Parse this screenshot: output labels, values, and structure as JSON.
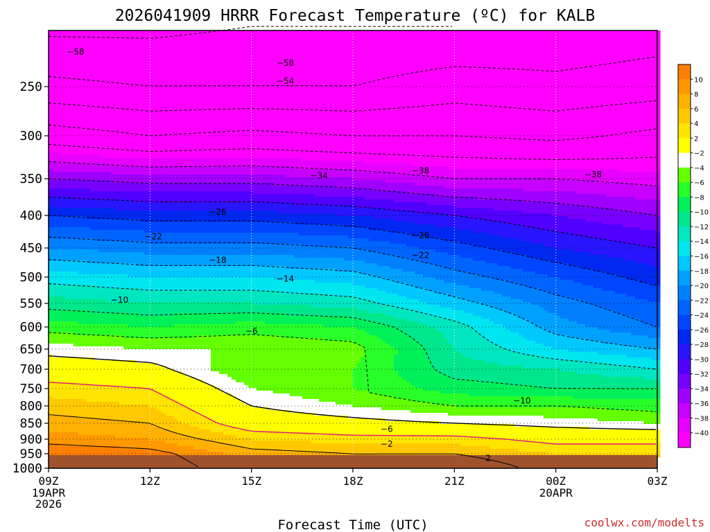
{
  "chart_data": {
    "type": "heatmap",
    "title": "2026041909 HRRR Forecast Temperature (ºC) for KALB",
    "xlabel": "Forecast Time (UTC)",
    "ylabel": "",
    "x_ticks": [
      {
        "hour": 9,
        "label": "09Z",
        "sub": [
          "19APR",
          "2026"
        ]
      },
      {
        "hour": 12,
        "label": "12Z",
        "sub": []
      },
      {
        "hour": 15,
        "label": "15Z",
        "sub": []
      },
      {
        "hour": 18,
        "label": "18Z",
        "sub": []
      },
      {
        "hour": 21,
        "label": "21Z",
        "sub": []
      },
      {
        "hour": 24,
        "label": "00Z",
        "sub": [
          "20APR"
        ]
      },
      {
        "hour": 27,
        "label": "03Z",
        "sub": []
      }
    ],
    "xlim_hours": [
      9,
      27
    ],
    "y_ticks": [
      250,
      300,
      350,
      400,
      450,
      500,
      550,
      600,
      650,
      700,
      750,
      800,
      850,
      900,
      950,
      1000
    ],
    "y_tick_labels": [
      "250",
      "300",
      "350",
      "400",
      "450",
      "500",
      "550",
      "600",
      "650",
      "700",
      "750",
      "800",
      "850",
      "900",
      "950",
      "1000"
    ],
    "y_scale": "log-pressure, inverted",
    "ylim": [
      1000,
      200
    ],
    "units": "ºC",
    "colorbar": {
      "levels": [
        10,
        8,
        6,
        4,
        2,
        -2,
        -4,
        -6,
        -8,
        -10,
        -12,
        -14,
        -16,
        -18,
        -20,
        -22,
        -24,
        -26,
        -28,
        -30,
        -32,
        -34,
        -36,
        -38,
        -40
      ],
      "labels": [
        "10",
        "8",
        "6",
        "4",
        "2",
        "−2",
        "−4",
        "−6",
        "−8",
        "−10",
        "−12",
        "−14",
        "−16",
        "−18",
        "−20",
        "−22",
        "−24",
        "−26",
        "−28",
        "−30",
        "−32",
        "−34",
        "−36",
        "−38",
        "−40"
      ],
      "colors": [
        "#ff8000",
        "#ff9800",
        "#ffb000",
        "#ffc800",
        "#ffe400",
        "#ffff00",
        "#ffffff",
        "#64ff00",
        "#28ff28",
        "#00f05a",
        "#00e68c",
        "#00e6c0",
        "#00e6f0",
        "#00c8ff",
        "#00a0ff",
        "#0080ff",
        "#0064ff",
        "#0046ff",
        "#0028f0",
        "#2814ff",
        "#5000ff",
        "#7800ff",
        "#a000ff",
        "#c800ff",
        "#e600ff",
        "#ff00ff"
      ]
    },
    "series": [
      {
        "hour": 9,
        "temps": [
          -59,
          -53,
          -44,
          -34,
          -26,
          -20,
          -15,
          -11,
          -7,
          -3,
          0,
          3,
          5,
          7,
          9,
          12,
          13
        ]
      },
      {
        "hour": 12,
        "temps": [
          -59,
          -54,
          -46,
          -35,
          -27,
          -21,
          -16,
          -12,
          -8,
          -4,
          -1,
          2,
          4,
          6,
          8,
          11,
          12
        ]
      },
      {
        "hour": 15,
        "temps": [
          -58,
          -54,
          -45,
          -35,
          -27,
          -21,
          -16,
          -12,
          -7,
          -4,
          -6,
          -4,
          -2,
          0,
          4,
          7,
          8
        ]
      },
      {
        "hour": 18,
        "temps": [
          -58,
          -54,
          -46,
          -36,
          -28,
          -22,
          -17,
          -13,
          -8,
          -5,
          -6,
          -6,
          -4,
          -1,
          3,
          6,
          7
        ]
      },
      {
        "hour": 21,
        "temps": [
          -58,
          -52,
          -46,
          -38,
          -30,
          -25,
          -21,
          -17,
          -13,
          -12,
          -11,
          -9,
          -6,
          -2,
          3,
          6,
          8
        ]
      },
      {
        "hour": 24,
        "temps": [
          -57,
          -53,
          -47,
          -38,
          -32,
          -28,
          -24,
          -21,
          -19,
          -16,
          -12,
          -10,
          -6,
          -3,
          1,
          4,
          5
        ]
      },
      {
        "hour": 27,
        "temps": [
          -56,
          -52,
          -45,
          -39,
          -34,
          -30,
          -27,
          -24,
          -22,
          -18,
          -14,
          -10,
          -7,
          -4,
          1,
          4,
          5
        ]
      }
    ],
    "series_pressures": [
      200,
      250,
      300,
      350,
      400,
      450,
      500,
      550,
      600,
      650,
      700,
      750,
      800,
      850,
      900,
      950,
      1000
    ],
    "contour_labels": [
      {
        "text": "−58",
        "hour": 9.8,
        "p": 220
      },
      {
        "text": "−58",
        "hour": 16.0,
        "p": 229
      },
      {
        "text": "−54",
        "hour": 16.0,
        "p": 245
      },
      {
        "text": "−34",
        "hour": 17.0,
        "p": 346
      },
      {
        "text": "−38",
        "hour": 20.0,
        "p": 340
      },
      {
        "text": "−38",
        "hour": 25.1,
        "p": 345
      },
      {
        "text": "−26",
        "hour": 14.0,
        "p": 395
      },
      {
        "text": "−26",
        "hour": 20.0,
        "p": 430
      },
      {
        "text": "−22",
        "hour": 12.1,
        "p": 432
      },
      {
        "text": "−22",
        "hour": 20.0,
        "p": 462
      },
      {
        "text": "−18",
        "hour": 14.0,
        "p": 470
      },
      {
        "text": "−14",
        "hour": 16.0,
        "p": 503
      },
      {
        "text": "−10",
        "hour": 11.1,
        "p": 543
      },
      {
        "text": "−6",
        "hour": 15.0,
        "p": 609
      },
      {
        "text": "−10",
        "hour": 23.0,
        "p": 785
      },
      {
        "text": "−6",
        "hour": 19.0,
        "p": 868
      },
      {
        "text": "−2",
        "hour": 19.0,
        "p": 916
      },
      {
        "text": "2",
        "hour": 22.0,
        "p": 965
      }
    ],
    "grid": true,
    "legend": "right"
  },
  "credit": "coolwx.com/modelts",
  "colors": {
    "ground": "#a0522d",
    "contour_zero_plus2": "#e0147a"
  }
}
